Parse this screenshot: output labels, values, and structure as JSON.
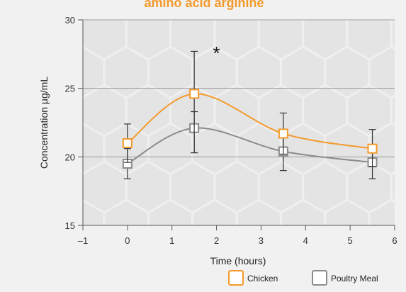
{
  "chart_data": {
    "type": "line",
    "title": "amino acid arginine",
    "xlabel": "Time (hours)",
    "ylabel": "Concentration µg/mL",
    "xlim": [
      -1,
      6
    ],
    "ylim": [
      15,
      30
    ],
    "x_ticks": [
      -1,
      0,
      1,
      2,
      3,
      4,
      5,
      6
    ],
    "x_tick_labels": [
      "–1",
      "0",
      "1",
      "2",
      "3",
      "4",
      "5",
      "6"
    ],
    "y_ticks": [
      15,
      20,
      25,
      30
    ],
    "y_tick_labels": [
      "15",
      "20",
      "25",
      "30"
    ],
    "grid": "horizontal",
    "legend_position": "bottom-right",
    "annotation": "*",
    "annotation_x": 2,
    "series": [
      {
        "name": "Chicken",
        "color": "#f39a2b",
        "x": [
          0,
          1.5,
          3.5,
          5.5
        ],
        "y": [
          21.0,
          24.6,
          21.7,
          20.6
        ],
        "err_low": [
          19.6,
          20.3,
          20.2,
          19.3
        ],
        "err_high": [
          22.4,
          27.7,
          23.2,
          22.0
        ]
      },
      {
        "name": "Poultry Meal",
        "color": "#8c8c8c",
        "x": [
          0,
          1.5,
          3.5,
          5.5
        ],
        "y": [
          19.5,
          22.1,
          20.4,
          19.6
        ],
        "err_low": [
          18.4,
          20.3,
          19.0,
          18.4
        ],
        "err_high": [
          20.6,
          23.3,
          21.8,
          20.8
        ]
      }
    ]
  }
}
